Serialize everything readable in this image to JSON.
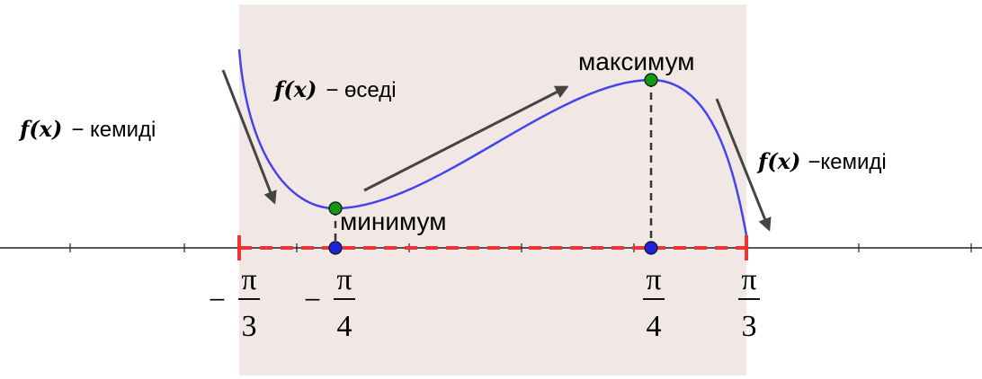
{
  "annotations": {
    "left": {
      "func": "f(x)",
      "text": "− кемиді"
    },
    "middle": {
      "func": "f(x)",
      "text": "− өседі"
    },
    "right": {
      "func": "f(x)",
      "text": "−кемиді"
    },
    "maximum": "максимум",
    "minimum": "минимум"
  },
  "ticks": [
    {
      "sign": "−",
      "numerator": "π",
      "denominator": "3"
    },
    {
      "sign": "−",
      "numerator": "π",
      "denominator": "4"
    },
    {
      "numerator": "π",
      "denominator": "4"
    },
    {
      "numerator": "π",
      "denominator": "3"
    }
  ]
}
